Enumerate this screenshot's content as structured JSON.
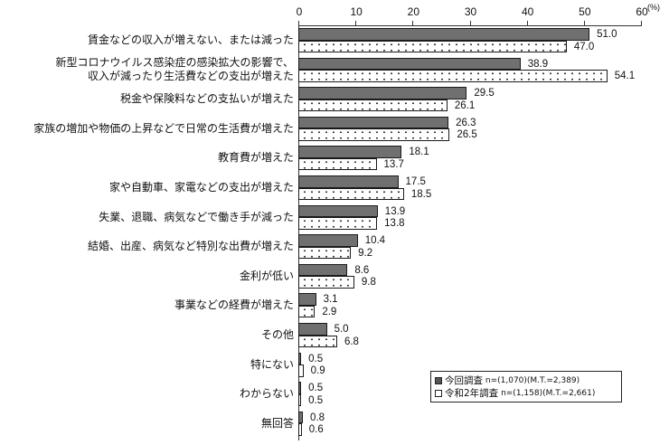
{
  "chart_data": {
    "type": "bar",
    "orientation": "horizontal",
    "title": "",
    "xlabel": "",
    "ylabel": "",
    "unit": "(%)",
    "xlim": [
      0,
      60
    ],
    "xticks": [
      0,
      10,
      20,
      30,
      40,
      50,
      60
    ],
    "grid": false,
    "legend_position": "bottom-right",
    "categories": [
      "賃金などの収入が増えない、または減った",
      "新型コロナウイルス感染症の感染拡大の影響で、\n収入が減ったり生活費などの支出が増えた",
      "税金や保険料などの支払いが増えた",
      "家族の増加や物価の上昇などで日常の生活費が増えた",
      "教育費が増えた",
      "家や自動車、家電などの支出が増えた",
      "失業、退職、病気などで働き手が減った",
      "結婚、出産、病気など特別な出費が増えた",
      "金利が低い",
      "事業などの経費が増えた",
      "その他",
      "特にない",
      "わからない",
      "無回答"
    ],
    "series": [
      {
        "name": "今回調査 n=(1,070)(M.T.=2,389)",
        "color": "#707070",
        "values": [
          51.0,
          38.9,
          29.5,
          26.3,
          18.1,
          17.5,
          13.9,
          10.4,
          8.6,
          3.1,
          5.0,
          0.5,
          0.5,
          0.8
        ]
      },
      {
        "name": "令和2年調査 n=(1,158)(M.T.=2,661)",
        "color": "#ffffff",
        "pattern": "dotted",
        "values": [
          47.0,
          54.1,
          26.1,
          26.5,
          13.7,
          18.5,
          13.8,
          9.2,
          9.8,
          2.9,
          6.8,
          0.9,
          0.5,
          0.6
        ]
      }
    ]
  },
  "axis": {
    "ticks": [
      "0",
      "10",
      "20",
      "30",
      "40",
      "50",
      "60"
    ],
    "unit": "(%)"
  },
  "labels": [
    [
      "賃金などの収入が増えない、または減った"
    ],
    [
      "新型コロナウイルス感染症の感染拡大の影響で、",
      "収入が減ったり生活費などの支出が増えた"
    ],
    [
      "税金や保険料などの支払いが増えた"
    ],
    [
      "家族の増加や物価の上昇などで日常の生活費が増えた"
    ],
    [
      "教育費が増えた"
    ],
    [
      "家や自動車、家電などの支出が増えた"
    ],
    [
      "失業、退職、病気などで働き手が減った"
    ],
    [
      "結婚、出産、病気など特別な出費が増えた"
    ],
    [
      "金利が低い"
    ],
    [
      "事業などの経費が増えた"
    ],
    [
      "その他"
    ],
    [
      "特にない"
    ],
    [
      "わからない"
    ],
    [
      "無回答"
    ]
  ],
  "value_labels": {
    "current": [
      "51.0",
      "38.9",
      "29.5",
      "26.3",
      "18.1",
      "17.5",
      "13.9",
      "10.4",
      "8.6",
      "3.1",
      "5.0",
      "0.5",
      "0.5",
      "0.8"
    ],
    "previous": [
      "47.0",
      "54.1",
      "26.1",
      "26.5",
      "13.7",
      "18.5",
      "13.8",
      "9.2",
      "9.8",
      "2.9",
      "6.8",
      "0.9",
      "0.5",
      "0.6"
    ]
  },
  "legend": {
    "current": {
      "marker": "■",
      "name": "今回調査",
      "detail": "n=(1,070)(M.T.=2,389)"
    },
    "previous": {
      "marker": "□",
      "name": "令和2年調査",
      "detail": "n=(1,158)(M.T.=2,661)"
    }
  }
}
